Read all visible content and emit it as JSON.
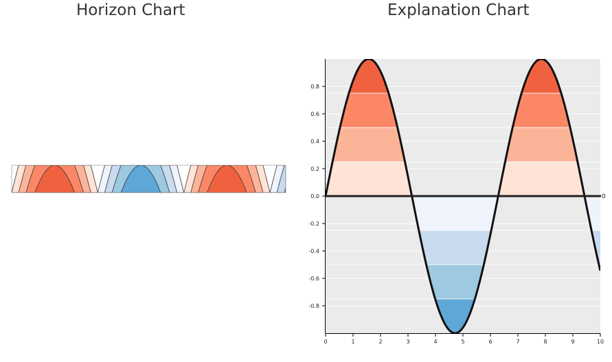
{
  "titles": {
    "horizon": "Horizon Chart",
    "explanation": "Explanation Chart"
  },
  "colors": {
    "background": "#ebebeb",
    "positive_bands": [
      "#fee3d6",
      "#fcb499",
      "#fb8767",
      "#f0623f"
    ],
    "negative_bands": [
      "#eef3fc",
      "#c8dbef",
      "#9dc9e1",
      "#5fa7d6"
    ],
    "curve": "#111111",
    "zero_line": "#222222"
  },
  "chart_data": [
    {
      "type": "area",
      "name": "horizon",
      "function": "sin(x)",
      "x_range": [
        0,
        10
      ],
      "bands": 4,
      "band_size": 0.25,
      "color_scheme": "diverging red-blue"
    },
    {
      "type": "area",
      "name": "explanation",
      "function": "sin(x)",
      "x": [
        0,
        0.5,
        1,
        1.5,
        1.5708,
        2,
        2.5,
        3,
        3.1416,
        3.5,
        4,
        4.5,
        4.7124,
        5,
        5.5,
        6,
        6.2832,
        6.5,
        7,
        7.5,
        7.854,
        8,
        8.5,
        9,
        9.4248,
        9.5,
        10
      ],
      "y": [
        0,
        0.479,
        0.841,
        0.997,
        1,
        0.909,
        0.598,
        0.141,
        0,
        -0.351,
        -0.757,
        -0.978,
        -1,
        -0.959,
        -0.706,
        -0.279,
        0,
        0.215,
        0.657,
        0.938,
        1,
        0.989,
        0.798,
        0.412,
        0,
        -0.075,
        -0.544
      ],
      "xlim": [
        0,
        10
      ],
      "ylim": [
        -1,
        1
      ],
      "x_ticks": [
        "0",
        "1",
        "2",
        "3",
        "4",
        "5",
        "6",
        "7",
        "8",
        "9",
        "10"
      ],
      "y_ticks": [
        "0.8",
        "0.6",
        "0.4",
        "0.2",
        "0.0",
        "-0.2",
        "-0.4",
        "-0.6",
        "-0.8"
      ],
      "band_thresholds": [
        0.25,
        0.5,
        0.75,
        1.0
      ],
      "zero_label": "0",
      "grid": true
    }
  ]
}
